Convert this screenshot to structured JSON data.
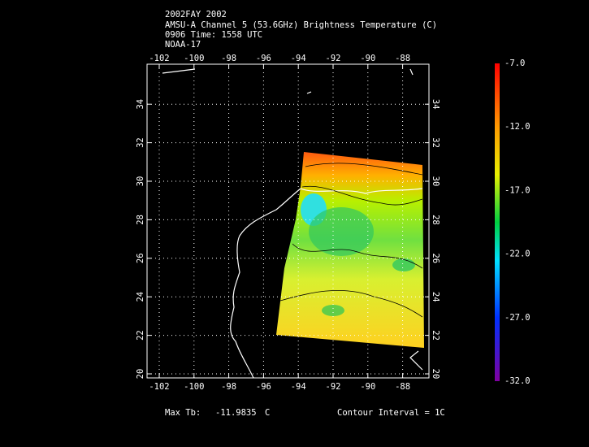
{
  "header": {
    "lines": [
      "2002FAY 2002",
      "AMSU-A Channel 5 (53.6GHz) Brightness Temperature (C)",
      "0906 Time: 1558 UTC",
      "NOAA-17"
    ]
  },
  "map": {
    "lon_ticks": [
      -102,
      -100,
      -98,
      -96,
      -94,
      -92,
      -90,
      -88
    ],
    "lat_ticks": [
      20,
      22,
      24,
      26,
      28,
      30,
      32,
      34
    ]
  },
  "colorbar": {
    "labels": [
      "-7.0",
      "-12.0",
      "-17.0",
      "-22.0",
      "-27.0",
      "-32.0"
    ]
  },
  "footer": {
    "max_label": "Max Tb:",
    "max_value": "-11.9835",
    "max_unit": "C",
    "contour": "Contour Interval = 1C"
  }
}
